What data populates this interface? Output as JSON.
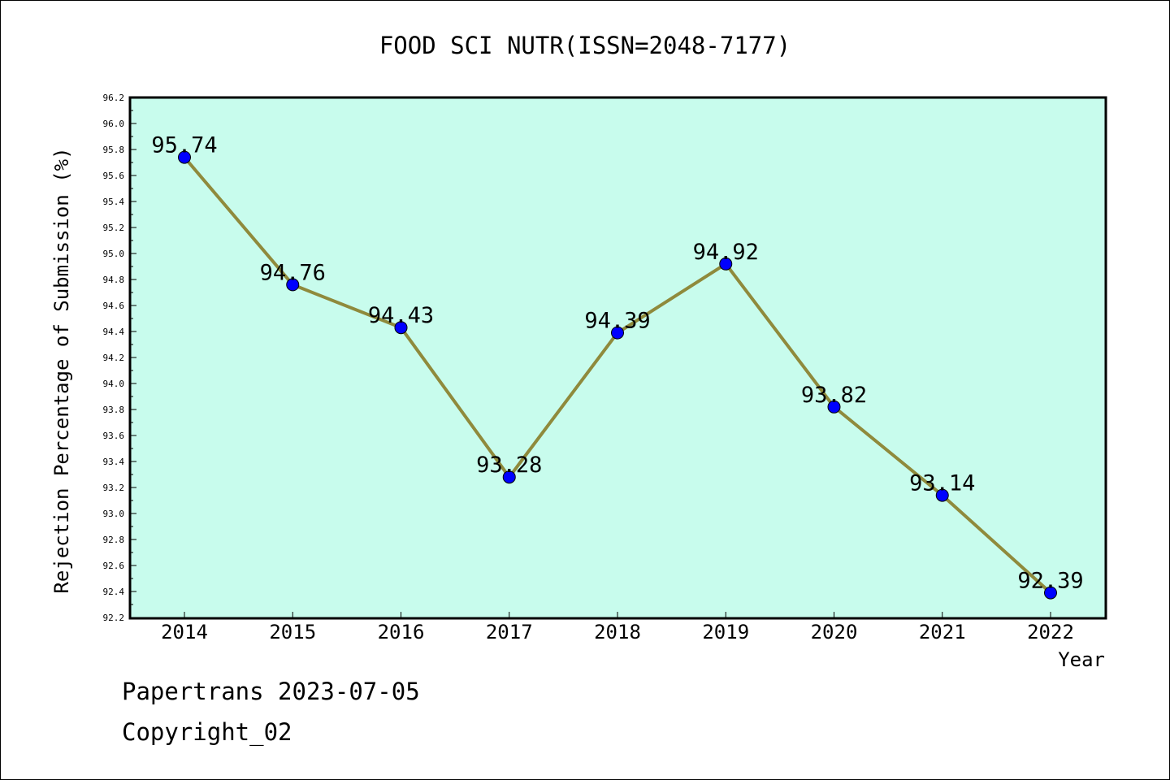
{
  "chart_data": {
    "type": "line",
    "title": "FOOD SCI NUTR(ISSN=2048-7177)",
    "xlabel": "Year",
    "ylabel": "Rejection Percentage of Submission (%)",
    "categories": [
      "2014",
      "2015",
      "2016",
      "2017",
      "2018",
      "2019",
      "2020",
      "2021",
      "2022"
    ],
    "values": [
      95.74,
      94.76,
      94.43,
      93.28,
      94.39,
      94.92,
      93.82,
      93.14,
      92.39
    ],
    "data_labels": [
      "95.74",
      "94.76",
      "94.43",
      "93.28",
      "94.39",
      "94.92",
      "93.82",
      "93.14",
      "92.39"
    ],
    "ylim": [
      92.2,
      96.2
    ],
    "yticks": [
      "92.2",
      "92.4",
      "92.6",
      "92.8",
      "93.0",
      "93.2",
      "93.4",
      "93.6",
      "93.8",
      "94.0",
      "94.2",
      "94.4",
      "94.6",
      "94.8",
      "95.0",
      "95.2",
      "95.4",
      "95.6",
      "95.8",
      "96.0",
      "96.2"
    ],
    "grid": false,
    "colors": {
      "plot_background": "#c8fced",
      "line": "#8f8a3c",
      "marker": "#0000ff"
    }
  },
  "footer": {
    "line1": "Papertrans 2023-07-05",
    "line2": "Copyright_02"
  }
}
